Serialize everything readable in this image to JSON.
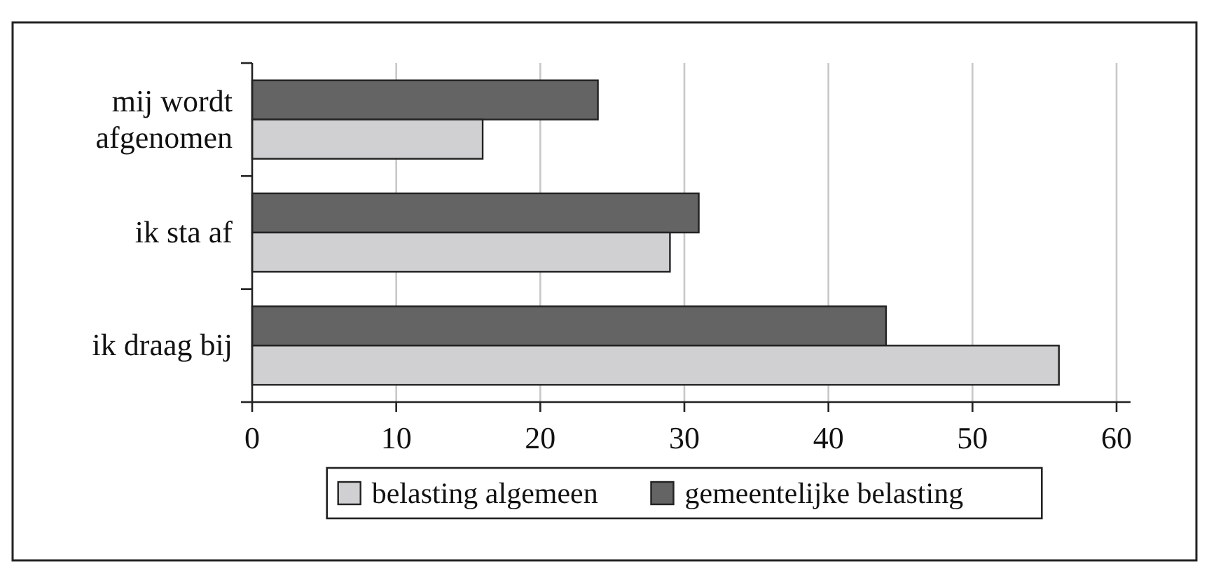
{
  "chart_data": {
    "type": "bar",
    "orientation": "horizontal",
    "categories": [
      "mij wordt afgenomen",
      "ik sta af",
      "ik draag bij"
    ],
    "series": [
      {
        "name": "gemeentelijke belasting",
        "color": "#646464",
        "values": [
          24,
          31,
          44
        ]
      },
      {
        "name": "belasting algemeen",
        "color": "#d0d0d2",
        "values": [
          16,
          29,
          56
        ]
      }
    ],
    "xlim": [
      0,
      60
    ],
    "xticks": [
      0,
      10,
      20,
      30,
      40,
      50,
      60
    ],
    "grid": "x",
    "legend": "bottom"
  }
}
